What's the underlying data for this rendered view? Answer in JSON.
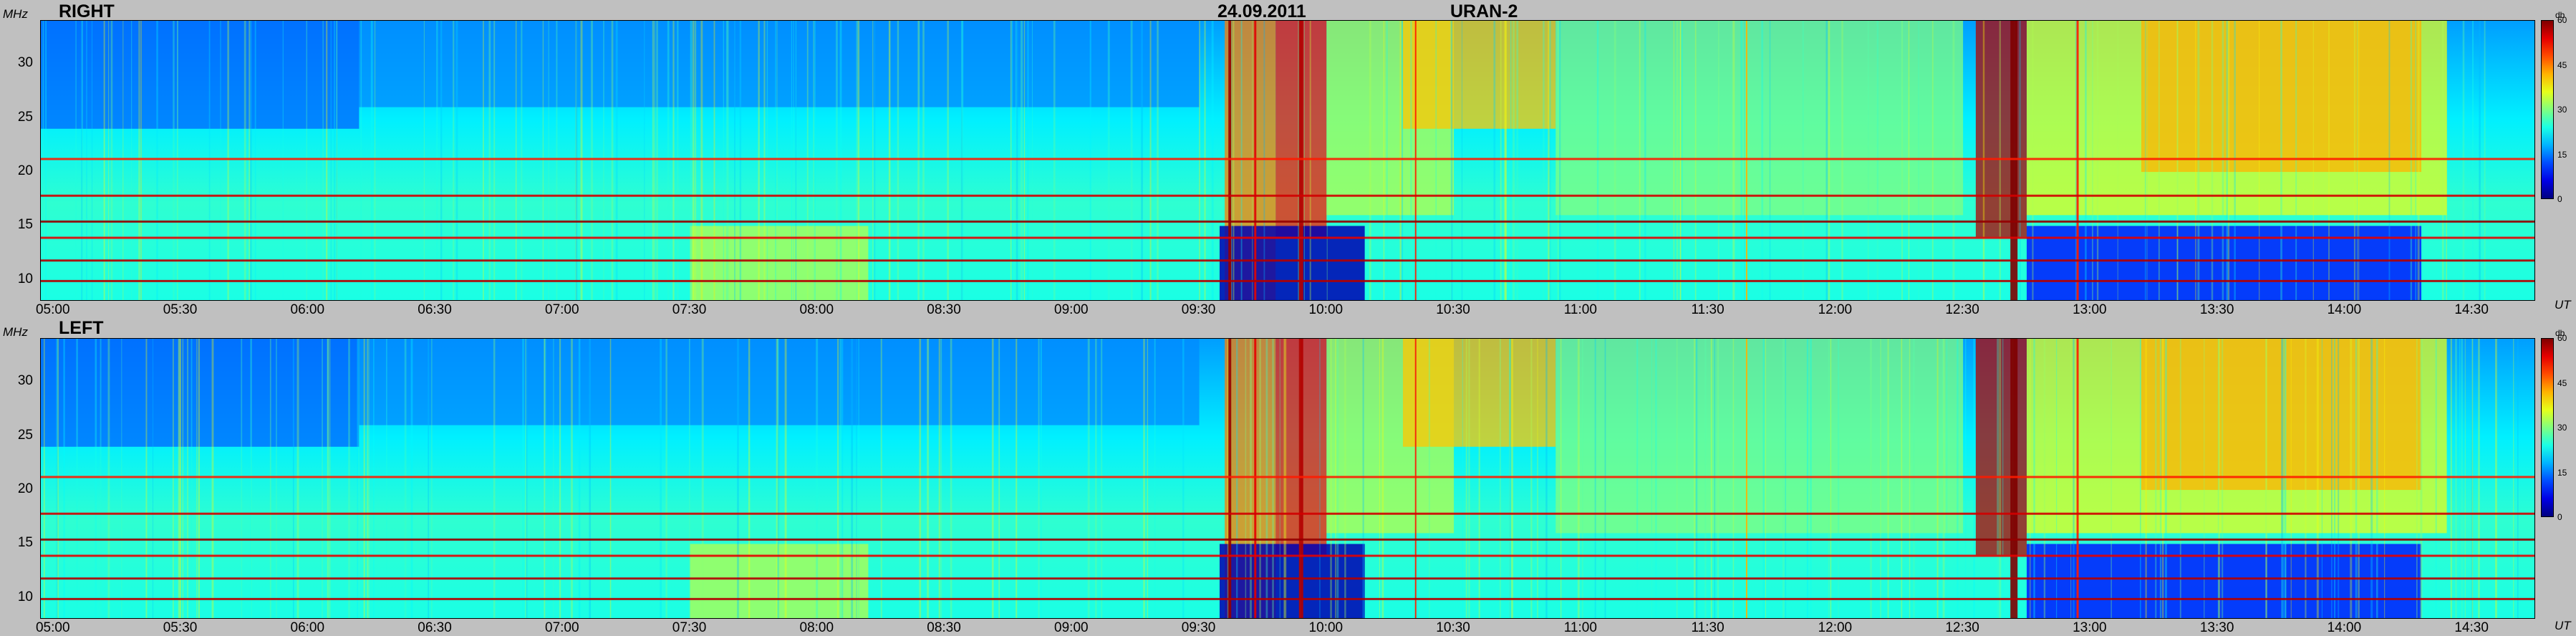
{
  "header": {
    "date": "24.09.2011",
    "instrument": "URAN-2"
  },
  "chart_data": {
    "type": "heatmap",
    "yunit": "MHz",
    "xunit": "UT",
    "yticks": [
      10,
      15,
      20,
      25,
      30
    ],
    "ylim": [
      8,
      34
    ],
    "xticks": [
      "05:00",
      "05:30",
      "06:00",
      "06:30",
      "07:00",
      "07:30",
      "08:00",
      "08:30",
      "09:00",
      "09:30",
      "10:00",
      "10:30",
      "11:00",
      "11:30",
      "12:00",
      "12:30",
      "13:00",
      "13:30",
      "14:00",
      "14:30"
    ],
    "xlim_hours": [
      4.95,
      14.75
    ],
    "colorbar": {
      "unit": "db",
      "ticks": [
        0,
        15,
        30,
        45,
        60
      ],
      "range": [
        0,
        60
      ]
    },
    "panels": [
      {
        "label": "RIGHT"
      },
      {
        "label": "LEFT"
      }
    ]
  }
}
